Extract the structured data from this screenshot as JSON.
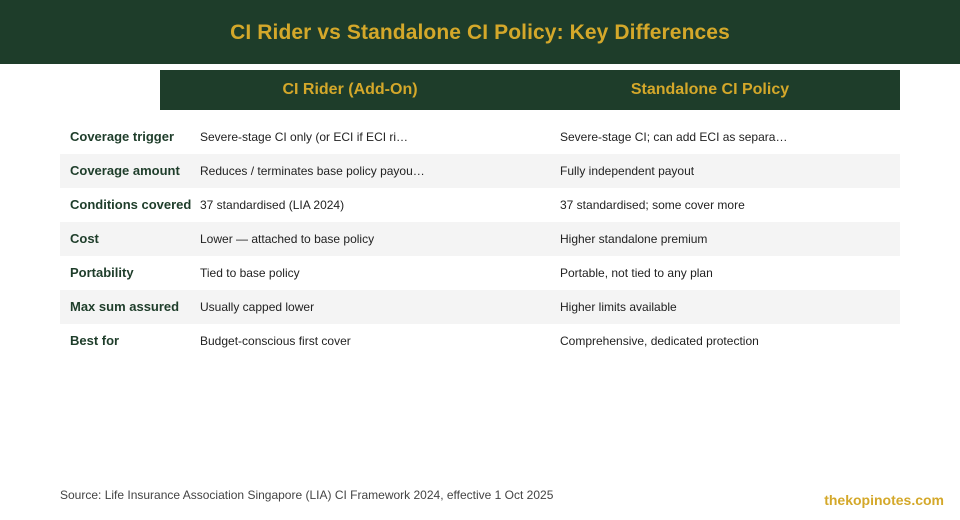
{
  "title": "CI Rider vs Standalone CI Policy: Key Differences",
  "columns": [
    "CI Rider (Add-On)",
    "Standalone CI Policy"
  ],
  "rows": [
    {
      "label": "Coverage trigger",
      "rider": "Severe-stage CI only (or ECI if ECI ri…",
      "standalone": "Severe-stage CI; can add ECI as separa…"
    },
    {
      "label": "Coverage amount",
      "rider": "Reduces / terminates base policy payou…",
      "standalone": "Fully independent payout"
    },
    {
      "label": "Conditions covered",
      "rider": "37 standardised (LIA 2024)",
      "standalone": "37 standardised; some cover more"
    },
    {
      "label": "Cost",
      "rider": "Lower — attached to base policy",
      "standalone": "Higher standalone premium"
    },
    {
      "label": "Portability",
      "rider": "Tied to base policy",
      "standalone": "Portable, not tied to any plan"
    },
    {
      "label": "Max sum assured",
      "rider": "Usually capped lower",
      "standalone": "Higher limits available"
    },
    {
      "label": "Best for",
      "rider": "Budget-conscious first cover",
      "standalone": "Comprehensive, dedicated protection"
    }
  ],
  "source": "Source: Life Insurance Association Singapore (LIA) CI Framework 2024, effective 1 Oct 2025",
  "brand": "thekopinotes.com",
  "colors": {
    "header_bg": "#1e3d2a",
    "accent": "#d4a82a",
    "alt_row": "#f4f4f4"
  }
}
